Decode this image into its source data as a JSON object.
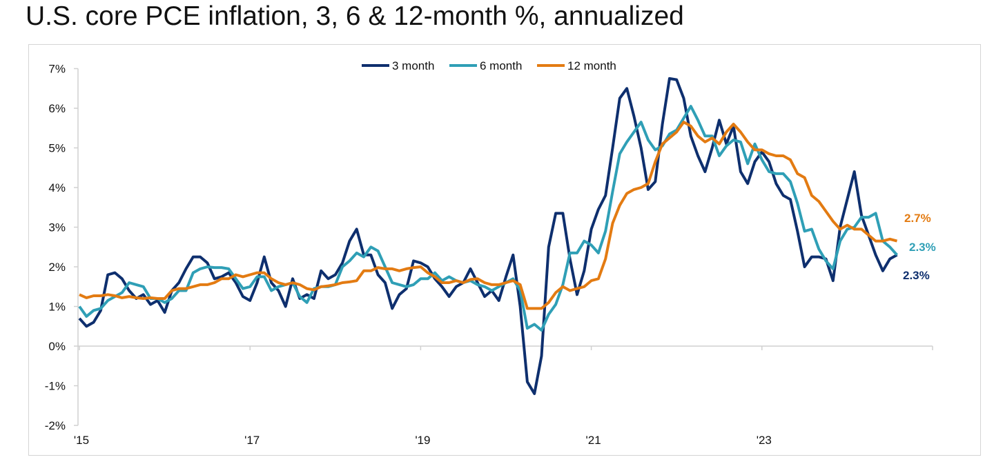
{
  "title": "U.S. core PCE inflation, 3, 6 & 12-month %, annualized",
  "chart_data": {
    "type": "line",
    "title": "U.S. core PCE inflation, 3, 6 & 12-month %, annualized",
    "xlabel": "",
    "ylabel": "",
    "frequency": "monthly",
    "x_start": "2015-01",
    "x_end": "2024-08",
    "xlim": [
      "2015-01",
      "2025-01"
    ],
    "ylim": [
      -2,
      7
    ],
    "y_ticks": [
      -2,
      -1,
      0,
      1,
      2,
      3,
      4,
      5,
      6,
      7
    ],
    "y_tick_labels": [
      "-2%",
      "-1%",
      "0%",
      "1%",
      "2%",
      "3%",
      "4%",
      "5%",
      "6%",
      "7%"
    ],
    "x_ticks": [
      2015,
      2017,
      2019,
      2021,
      2023,
      2025
    ],
    "x_tick_labels": [
      "'15",
      "'17",
      "'19",
      "'21",
      "'23",
      ""
    ],
    "grid": false,
    "legend_placement": "top-center",
    "series": [
      {
        "name": "3 month",
        "color": "#0e2f6e",
        "values": [
          0.7,
          0.5,
          0.6,
          0.9,
          1.8,
          1.85,
          1.7,
          1.4,
          1.2,
          1.3,
          1.05,
          1.15,
          0.85,
          1.4,
          1.6,
          1.95,
          2.25,
          2.25,
          2.1,
          1.7,
          1.75,
          1.85,
          1.6,
          1.25,
          1.15,
          1.6,
          2.25,
          1.6,
          1.4,
          1.0,
          1.7,
          1.2,
          1.3,
          1.2,
          1.9,
          1.7,
          1.8,
          2.1,
          2.65,
          2.95,
          2.3,
          2.3,
          1.8,
          1.6,
          0.95,
          1.3,
          1.45,
          2.15,
          2.1,
          2.0,
          1.7,
          1.5,
          1.25,
          1.5,
          1.6,
          1.95,
          1.6,
          1.25,
          1.4,
          1.15,
          1.75,
          2.3,
          1.0,
          -0.9,
          -1.2,
          -0.25,
          2.5,
          3.35,
          3.35,
          2.2,
          1.3,
          1.9,
          2.95,
          3.45,
          3.8,
          5.0,
          6.25,
          6.5,
          5.8,
          5.0,
          3.95,
          4.15,
          5.6,
          6.75,
          6.72,
          6.25,
          5.3,
          4.8,
          4.4,
          5.0,
          5.7,
          5.1,
          5.55,
          4.4,
          4.1,
          4.65,
          4.9,
          4.65,
          4.1,
          3.8,
          3.7,
          2.9,
          2.0,
          2.25,
          2.25,
          2.2,
          1.65,
          3.0,
          3.7,
          4.4,
          3.3,
          2.8,
          2.3,
          1.9,
          2.2,
          2.3
        ],
        "end_label": "2.3%"
      },
      {
        "name": "6 month",
        "color": "#2f9fb6",
        "values": [
          1.0,
          0.75,
          0.9,
          0.95,
          1.15,
          1.25,
          1.35,
          1.6,
          1.55,
          1.5,
          1.2,
          1.2,
          1.1,
          1.2,
          1.4,
          1.4,
          1.85,
          1.95,
          2.0,
          1.98,
          1.98,
          1.95,
          1.7,
          1.45,
          1.5,
          1.75,
          1.75,
          1.4,
          1.5,
          1.55,
          1.6,
          1.25,
          1.1,
          1.45,
          1.5,
          1.5,
          1.55,
          2.0,
          2.15,
          2.35,
          2.25,
          2.5,
          2.4,
          2.0,
          1.6,
          1.55,
          1.5,
          1.55,
          1.7,
          1.7,
          1.85,
          1.65,
          1.75,
          1.65,
          1.6,
          1.65,
          1.55,
          1.5,
          1.4,
          1.5,
          1.6,
          1.7,
          1.4,
          0.45,
          0.55,
          0.4,
          0.8,
          1.05,
          1.55,
          2.35,
          2.35,
          2.65,
          2.55,
          2.35,
          2.9,
          3.9,
          4.85,
          5.15,
          5.4,
          5.65,
          5.2,
          4.95,
          5.05,
          5.35,
          5.45,
          5.75,
          6.05,
          5.7,
          5.3,
          5.3,
          4.8,
          5.05,
          5.2,
          5.15,
          4.6,
          5.1,
          4.7,
          4.4,
          4.35,
          4.35,
          4.15,
          3.6,
          2.9,
          2.95,
          2.45,
          2.15,
          1.95,
          2.65,
          2.95,
          3.0,
          3.25,
          3.25,
          3.35,
          2.65,
          2.5,
          2.3
        ],
        "end_label": "2.3%"
      },
      {
        "name": "12 month",
        "color": "#e37b12",
        "values": [
          1.3,
          1.22,
          1.27,
          1.27,
          1.3,
          1.27,
          1.22,
          1.25,
          1.22,
          1.2,
          1.22,
          1.2,
          1.2,
          1.4,
          1.45,
          1.45,
          1.5,
          1.55,
          1.55,
          1.6,
          1.7,
          1.7,
          1.8,
          1.75,
          1.8,
          1.85,
          1.85,
          1.7,
          1.6,
          1.55,
          1.6,
          1.55,
          1.45,
          1.42,
          1.5,
          1.52,
          1.55,
          1.6,
          1.62,
          1.65,
          1.9,
          1.9,
          1.98,
          1.95,
          1.95,
          1.9,
          1.95,
          1.98,
          2.0,
          1.85,
          1.75,
          1.6,
          1.6,
          1.65,
          1.6,
          1.68,
          1.7,
          1.6,
          1.55,
          1.55,
          1.6,
          1.65,
          1.55,
          0.95,
          0.95,
          0.95,
          1.1,
          1.35,
          1.5,
          1.4,
          1.45,
          1.5,
          1.65,
          1.7,
          2.2,
          3.1,
          3.55,
          3.85,
          3.95,
          4.0,
          4.1,
          4.65,
          5.1,
          5.25,
          5.4,
          5.65,
          5.55,
          5.3,
          5.15,
          5.25,
          5.1,
          5.4,
          5.6,
          5.4,
          5.15,
          4.95,
          4.95,
          4.85,
          4.8,
          4.8,
          4.7,
          4.35,
          4.25,
          3.8,
          3.65,
          3.4,
          3.15,
          2.95,
          3.05,
          2.95,
          2.95,
          2.8,
          2.65,
          2.65,
          2.7,
          2.65
        ],
        "end_label": "2.7%"
      }
    ]
  }
}
